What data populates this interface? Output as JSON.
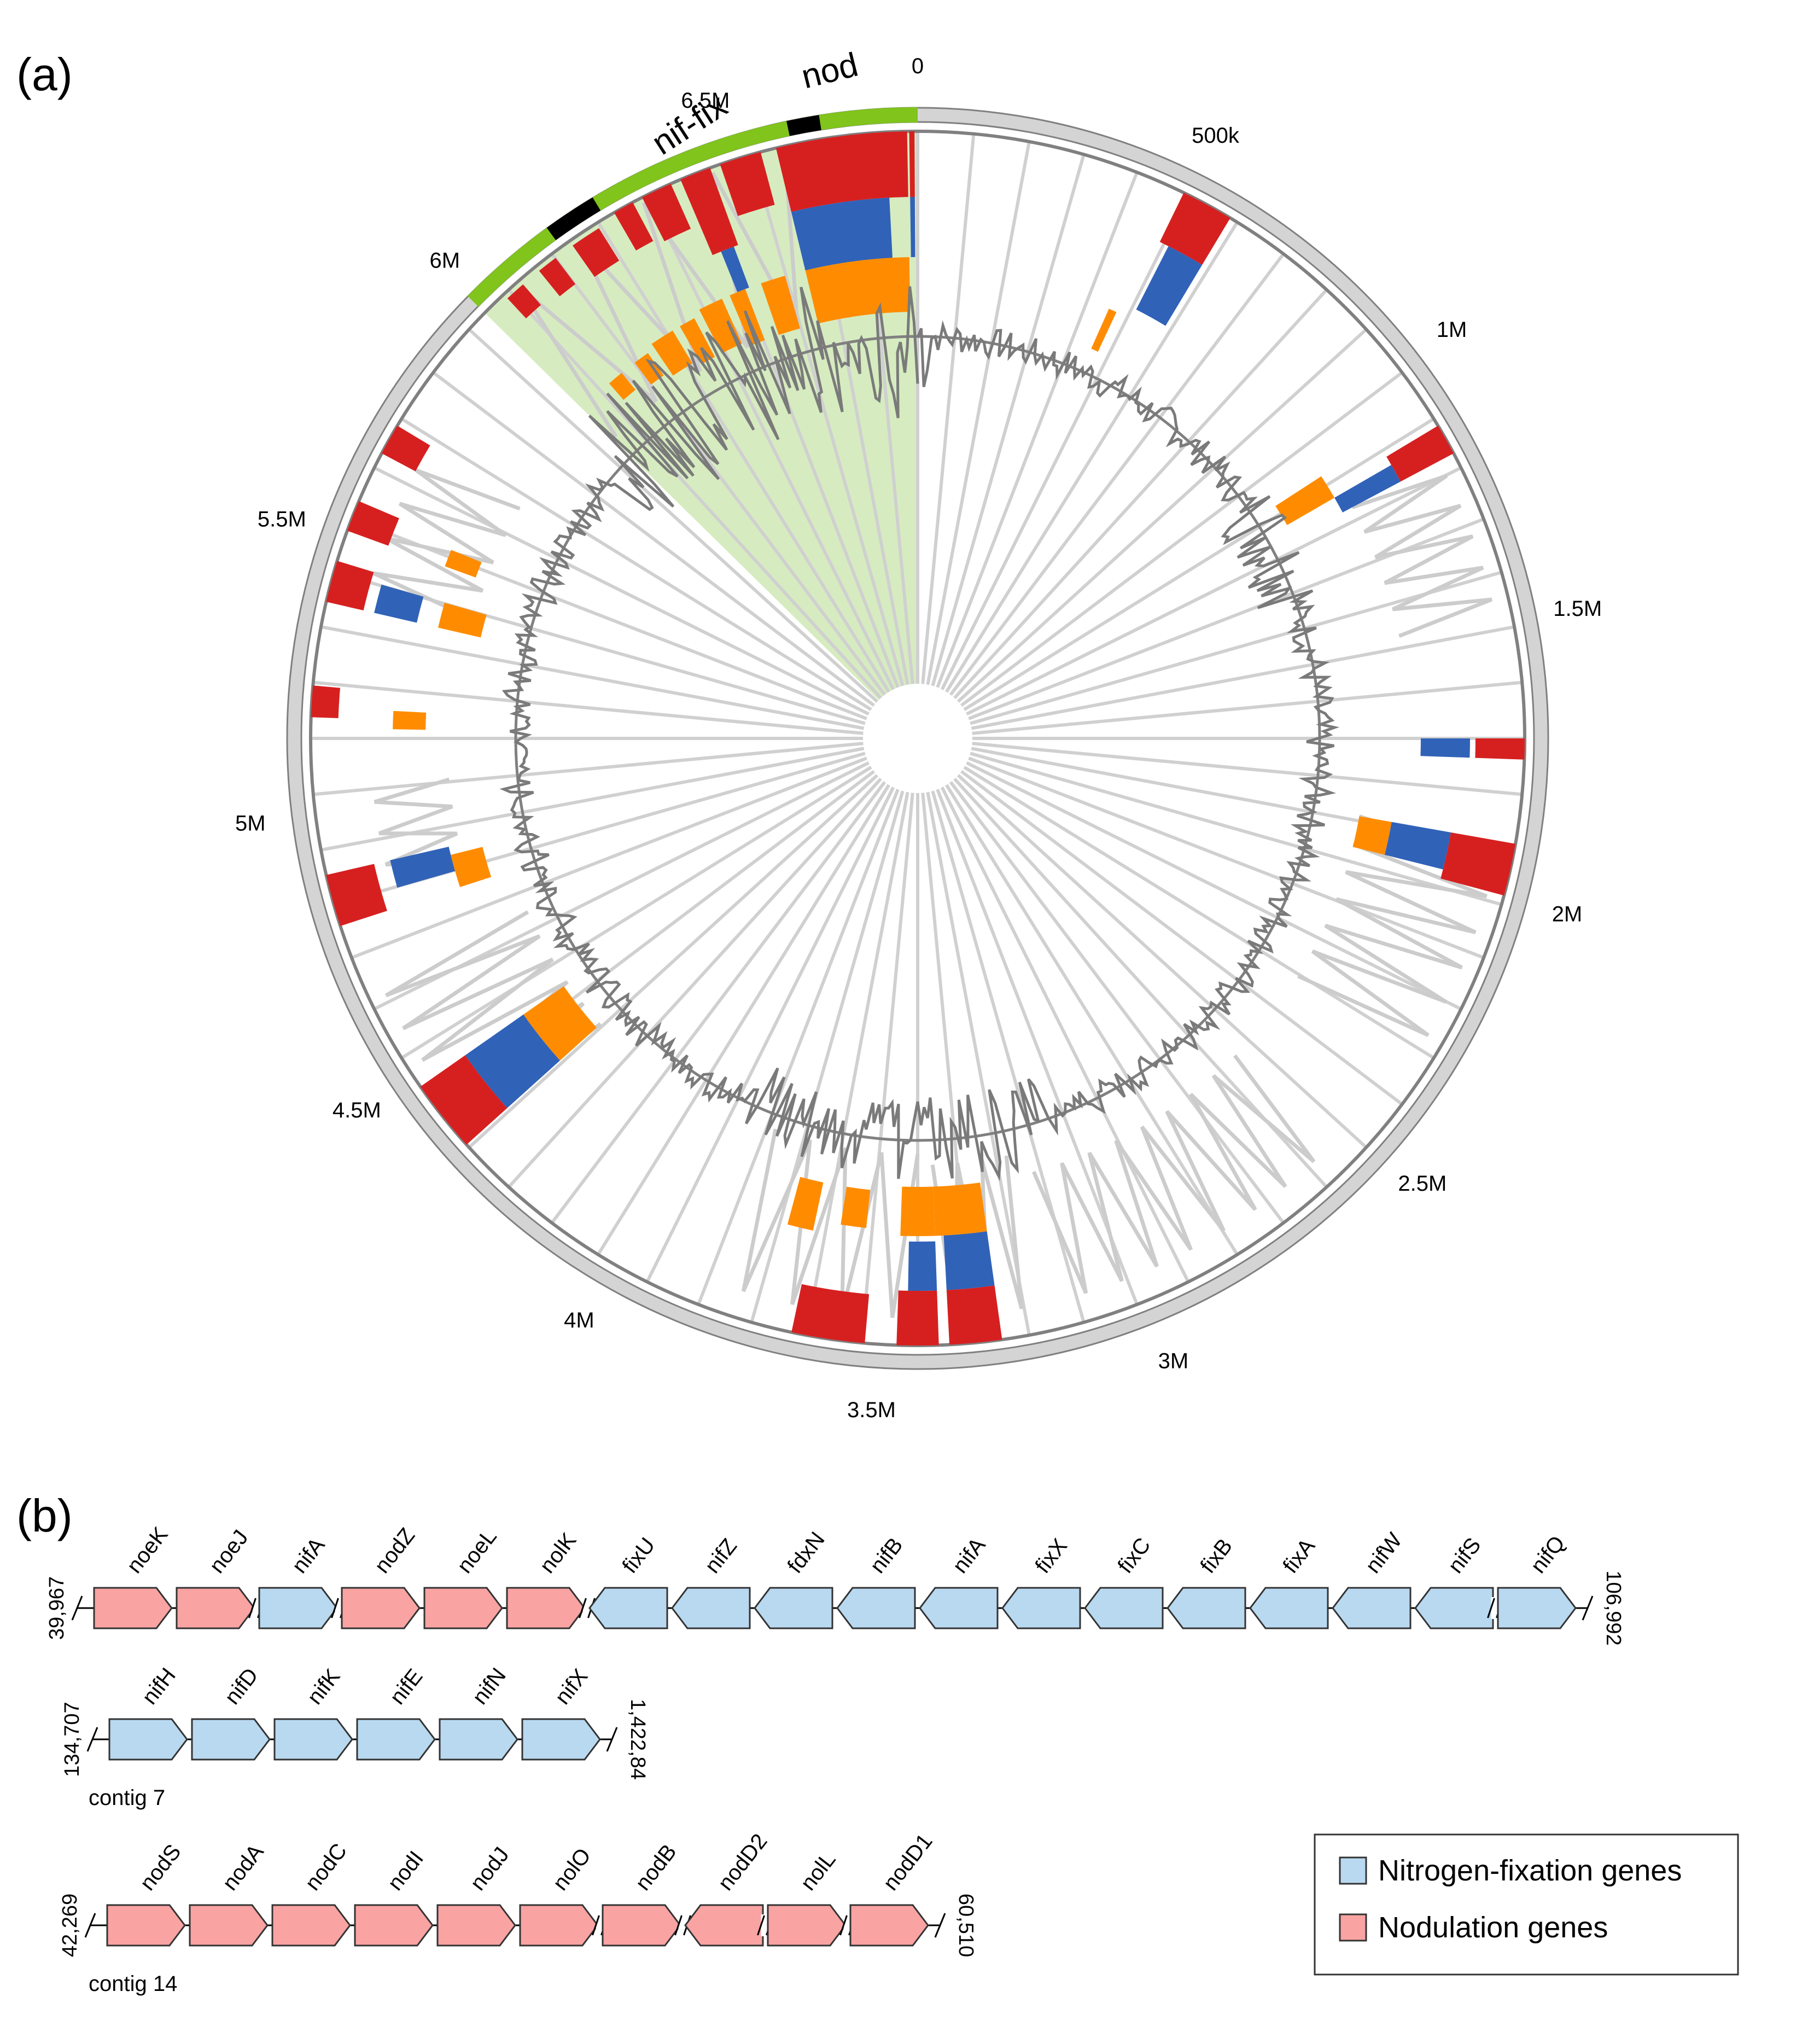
{
  "panel_a": {
    "label": "(a)",
    "tick_labels": [
      "0",
      "500k",
      "1M",
      "1.5M",
      "2M",
      "2.5M",
      "3M",
      "3.5M",
      "4M",
      "4.5M",
      "5M",
      "5.5M",
      "6M",
      "6.5M"
    ],
    "region_labels": [
      "nif-fix",
      "nod"
    ]
  },
  "panel_b": {
    "label": "(b)",
    "rows": [
      {
        "start": "39,967",
        "end": "106,992",
        "contig": "",
        "genes": [
          {
            "name": "noeK",
            "type": "nodulation",
            "dir": "right"
          },
          {
            "name": "noeJ",
            "type": "nodulation",
            "dir": "right"
          },
          {
            "name": "nifA",
            "type": "nitrogen",
            "dir": "right"
          },
          {
            "name": "nodZ",
            "type": "nodulation",
            "dir": "right"
          },
          {
            "name": "noeL",
            "type": "nodulation",
            "dir": "right"
          },
          {
            "name": "nolK",
            "type": "nodulation",
            "dir": "right"
          },
          {
            "name": "fixU",
            "type": "nitrogen",
            "dir": "left"
          },
          {
            "name": "nifZ",
            "type": "nitrogen",
            "dir": "left"
          },
          {
            "name": "fdxN",
            "type": "nitrogen",
            "dir": "left"
          },
          {
            "name": "nifB",
            "type": "nitrogen",
            "dir": "left"
          },
          {
            "name": "nifA",
            "type": "nitrogen",
            "dir": "left"
          },
          {
            "name": "fixX",
            "type": "nitrogen",
            "dir": "left"
          },
          {
            "name": "fixC",
            "type": "nitrogen",
            "dir": "left"
          },
          {
            "name": "fixB",
            "type": "nitrogen",
            "dir": "left"
          },
          {
            "name": "fixA",
            "type": "nitrogen",
            "dir": "left"
          },
          {
            "name": "nifW",
            "type": "nitrogen",
            "dir": "left"
          },
          {
            "name": "nifS",
            "type": "nitrogen",
            "dir": "left"
          },
          {
            "name": "nifQ",
            "type": "nitrogen",
            "dir": "right"
          }
        ]
      },
      {
        "start": "134,707",
        "end": "1,422,84",
        "contig": "contig 7",
        "genes": [
          {
            "name": "nifH",
            "type": "nitrogen",
            "dir": "right"
          },
          {
            "name": "nifD",
            "type": "nitrogen",
            "dir": "right"
          },
          {
            "name": "nifK",
            "type": "nitrogen",
            "dir": "right"
          },
          {
            "name": "nifE",
            "type": "nitrogen",
            "dir": "right"
          },
          {
            "name": "nifN",
            "type": "nitrogen",
            "dir": "right"
          },
          {
            "name": "nifX",
            "type": "nitrogen",
            "dir": "right"
          }
        ]
      },
      {
        "start": "42,269",
        "end": "60,510",
        "contig": "contig 14",
        "genes": [
          {
            "name": "nodS",
            "type": "nodulation",
            "dir": "right"
          },
          {
            "name": "nodA",
            "type": "nodulation",
            "dir": "right"
          },
          {
            "name": "nodC",
            "type": "nodulation",
            "dir": "right"
          },
          {
            "name": "nodI",
            "type": "nodulation",
            "dir": "right"
          },
          {
            "name": "nodJ",
            "type": "nodulation",
            "dir": "right"
          },
          {
            "name": "nolO",
            "type": "nodulation",
            "dir": "right"
          },
          {
            "name": "nodB",
            "type": "nodulation",
            "dir": "right"
          },
          {
            "name": "nodD2",
            "type": "nodulation",
            "dir": "left"
          },
          {
            "name": "nolL",
            "type": "nodulation",
            "dir": "right"
          },
          {
            "name": "nodD1",
            "type": "nodulation",
            "dir": "right"
          }
        ]
      }
    ],
    "legend": [
      {
        "label": "Nitrogen-fixation genes",
        "type": "nitrogen"
      },
      {
        "label": "Nodulation genes",
        "type": "nodulation"
      }
    ]
  },
  "colors": {
    "nitrogen": "#b8d9f0",
    "nodulation": "#f9a3a3",
    "red": "#d62020",
    "blue": "#3062b8",
    "orange": "#ff8c00",
    "green": "#80c41c",
    "green_fill": "#d6ecc0",
    "grey_ring": "#d4d4d4",
    "dark_grey": "#808080",
    "light_grey": "#d0d0d0"
  }
}
